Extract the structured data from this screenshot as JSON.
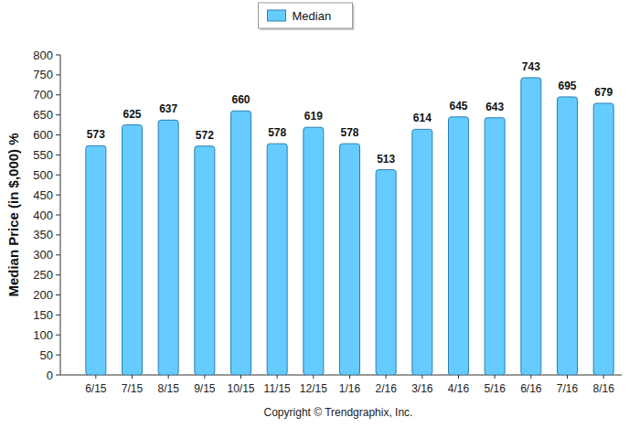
{
  "chart_data": {
    "type": "bar",
    "y_label": "Median Price (in $,000) %",
    "categories": [
      "6/15",
      "7/15",
      "8/15",
      "9/15",
      "10/15",
      "11/15",
      "12/15",
      "1/16",
      "2/16",
      "3/16",
      "4/16",
      "5/16",
      "6/16",
      "7/16",
      "8/16"
    ],
    "series": [
      {
        "name": "Median",
        "color": "#66ccff",
        "values": [
          573,
          625,
          637,
          572,
          660,
          578,
          619,
          578,
          513,
          614,
          645,
          643,
          743,
          695,
          679
        ]
      }
    ],
    "ylim": [
      0,
      800
    ],
    "yticks": [
      0,
      50,
      100,
      150,
      200,
      250,
      300,
      350,
      400,
      450,
      500,
      550,
      600,
      650,
      700,
      750,
      800
    ],
    "grid": false,
    "legend": "top",
    "data_labels": true,
    "annotations": [
      "Copyright © Trendgraphix, Inc."
    ]
  }
}
